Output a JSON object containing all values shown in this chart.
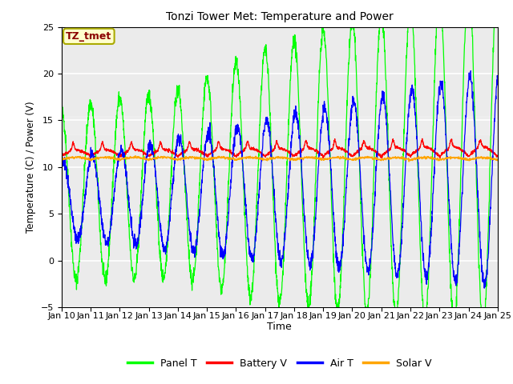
{
  "title": "Tonzi Tower Met: Temperature and Power",
  "xlabel": "Time",
  "ylabel": "Temperature (C) / Power (V)",
  "ylim": [
    -5,
    25
  ],
  "yticks": [
    -5,
    0,
    5,
    10,
    15,
    20,
    25
  ],
  "xtick_labels": [
    "Jan 10",
    "Jan 11",
    "Jan 12",
    "Jan 13",
    "Jan 14",
    "Jan 15",
    "Jan 16",
    "Jan 17",
    "Jan 18",
    "Jan 19",
    "Jan 20",
    "Jan 21",
    "Jan 22",
    "Jan 23",
    "Jan 24",
    "Jan 25"
  ],
  "colors": {
    "panel_t": "#00FF00",
    "battery_v": "#FF0000",
    "air_t": "#0000FF",
    "solar_v": "#FFA500"
  },
  "legend_labels": [
    "Panel T",
    "Battery V",
    "Air T",
    "Solar V"
  ],
  "annotation_text": "TZ_tmet",
  "annotation_color": "#8B0000",
  "annotation_bg": "#FFFFCC",
  "annotation_border": "#AAAA00",
  "background_color": "#EBEBEB",
  "n_days": 15,
  "pts_per_day": 144,
  "start_day": 10
}
